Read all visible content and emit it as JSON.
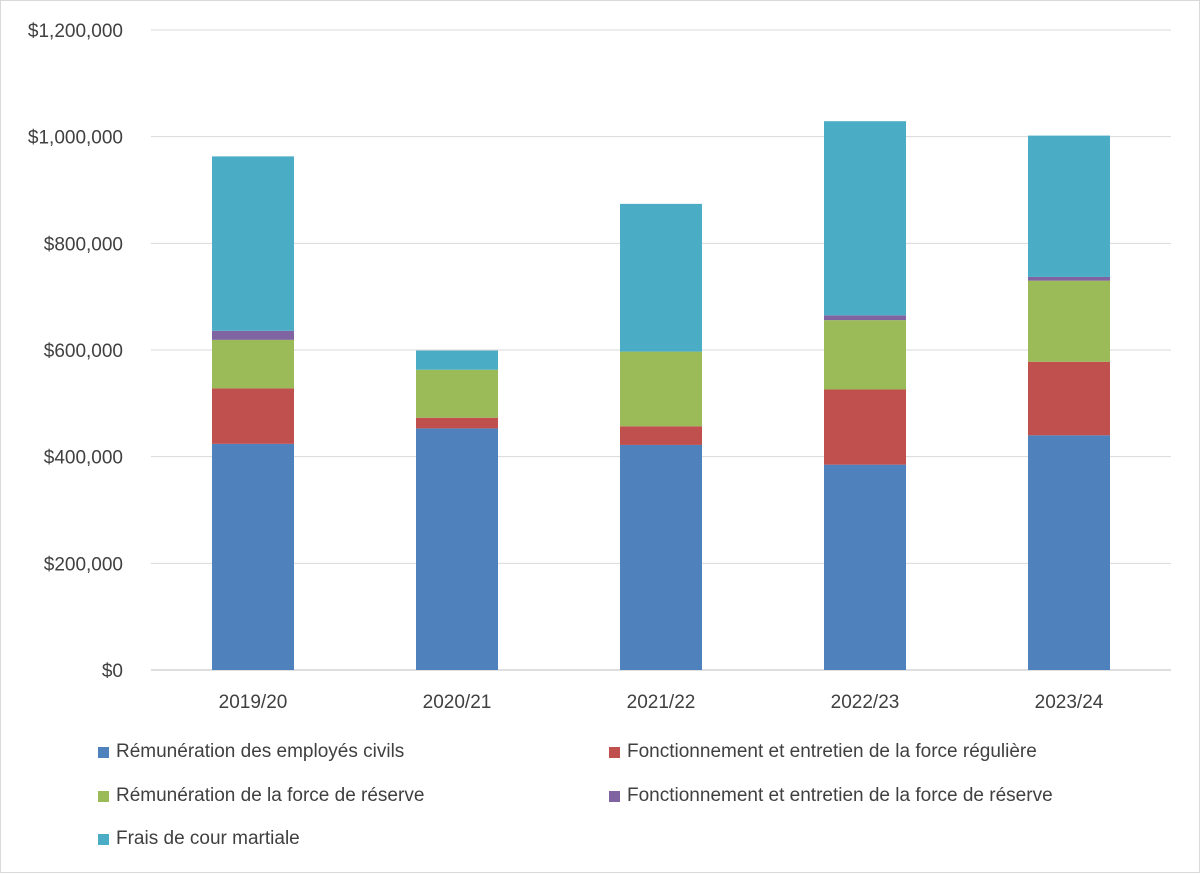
{
  "chart_data": {
    "type": "bar",
    "stacked": true,
    "title": "",
    "xlabel": "",
    "ylabel": "",
    "ylim": [
      0,
      1200000
    ],
    "ytick_step": 200000,
    "ytick_labels": [
      "$0",
      "$200,000",
      "$400,000",
      "$600,000",
      "$800,000",
      "$1,000,000",
      "$1,200,000"
    ],
    "categories": [
      "2019/20",
      "2020/21",
      "2021/22",
      "2022/23",
      "2023/24"
    ],
    "grid": true,
    "legend_position": "bottom",
    "series": [
      {
        "name": "Rémunération des employés civils",
        "color": "#4F81BD",
        "values": [
          424000,
          453000,
          422000,
          385000,
          440000
        ]
      },
      {
        "name": "Fonctionnement et entretien de la force régulière",
        "color": "#C0504D",
        "values": [
          104000,
          20000,
          35000,
          141000,
          138000
        ]
      },
      {
        "name": "Rémunération de la force de réserve",
        "color": "#9BBB59",
        "values": [
          91000,
          90000,
          140000,
          130000,
          152000
        ]
      },
      {
        "name": "Fonctionnement et entretien de la force de réserve",
        "color": "#8064A2",
        "values": [
          17000,
          0,
          0,
          9000,
          7000
        ]
      },
      {
        "name": "Frais de cour martiale",
        "color": "#4BACC6",
        "values": [
          327000,
          36000,
          277000,
          364000,
          265000
        ]
      }
    ]
  }
}
